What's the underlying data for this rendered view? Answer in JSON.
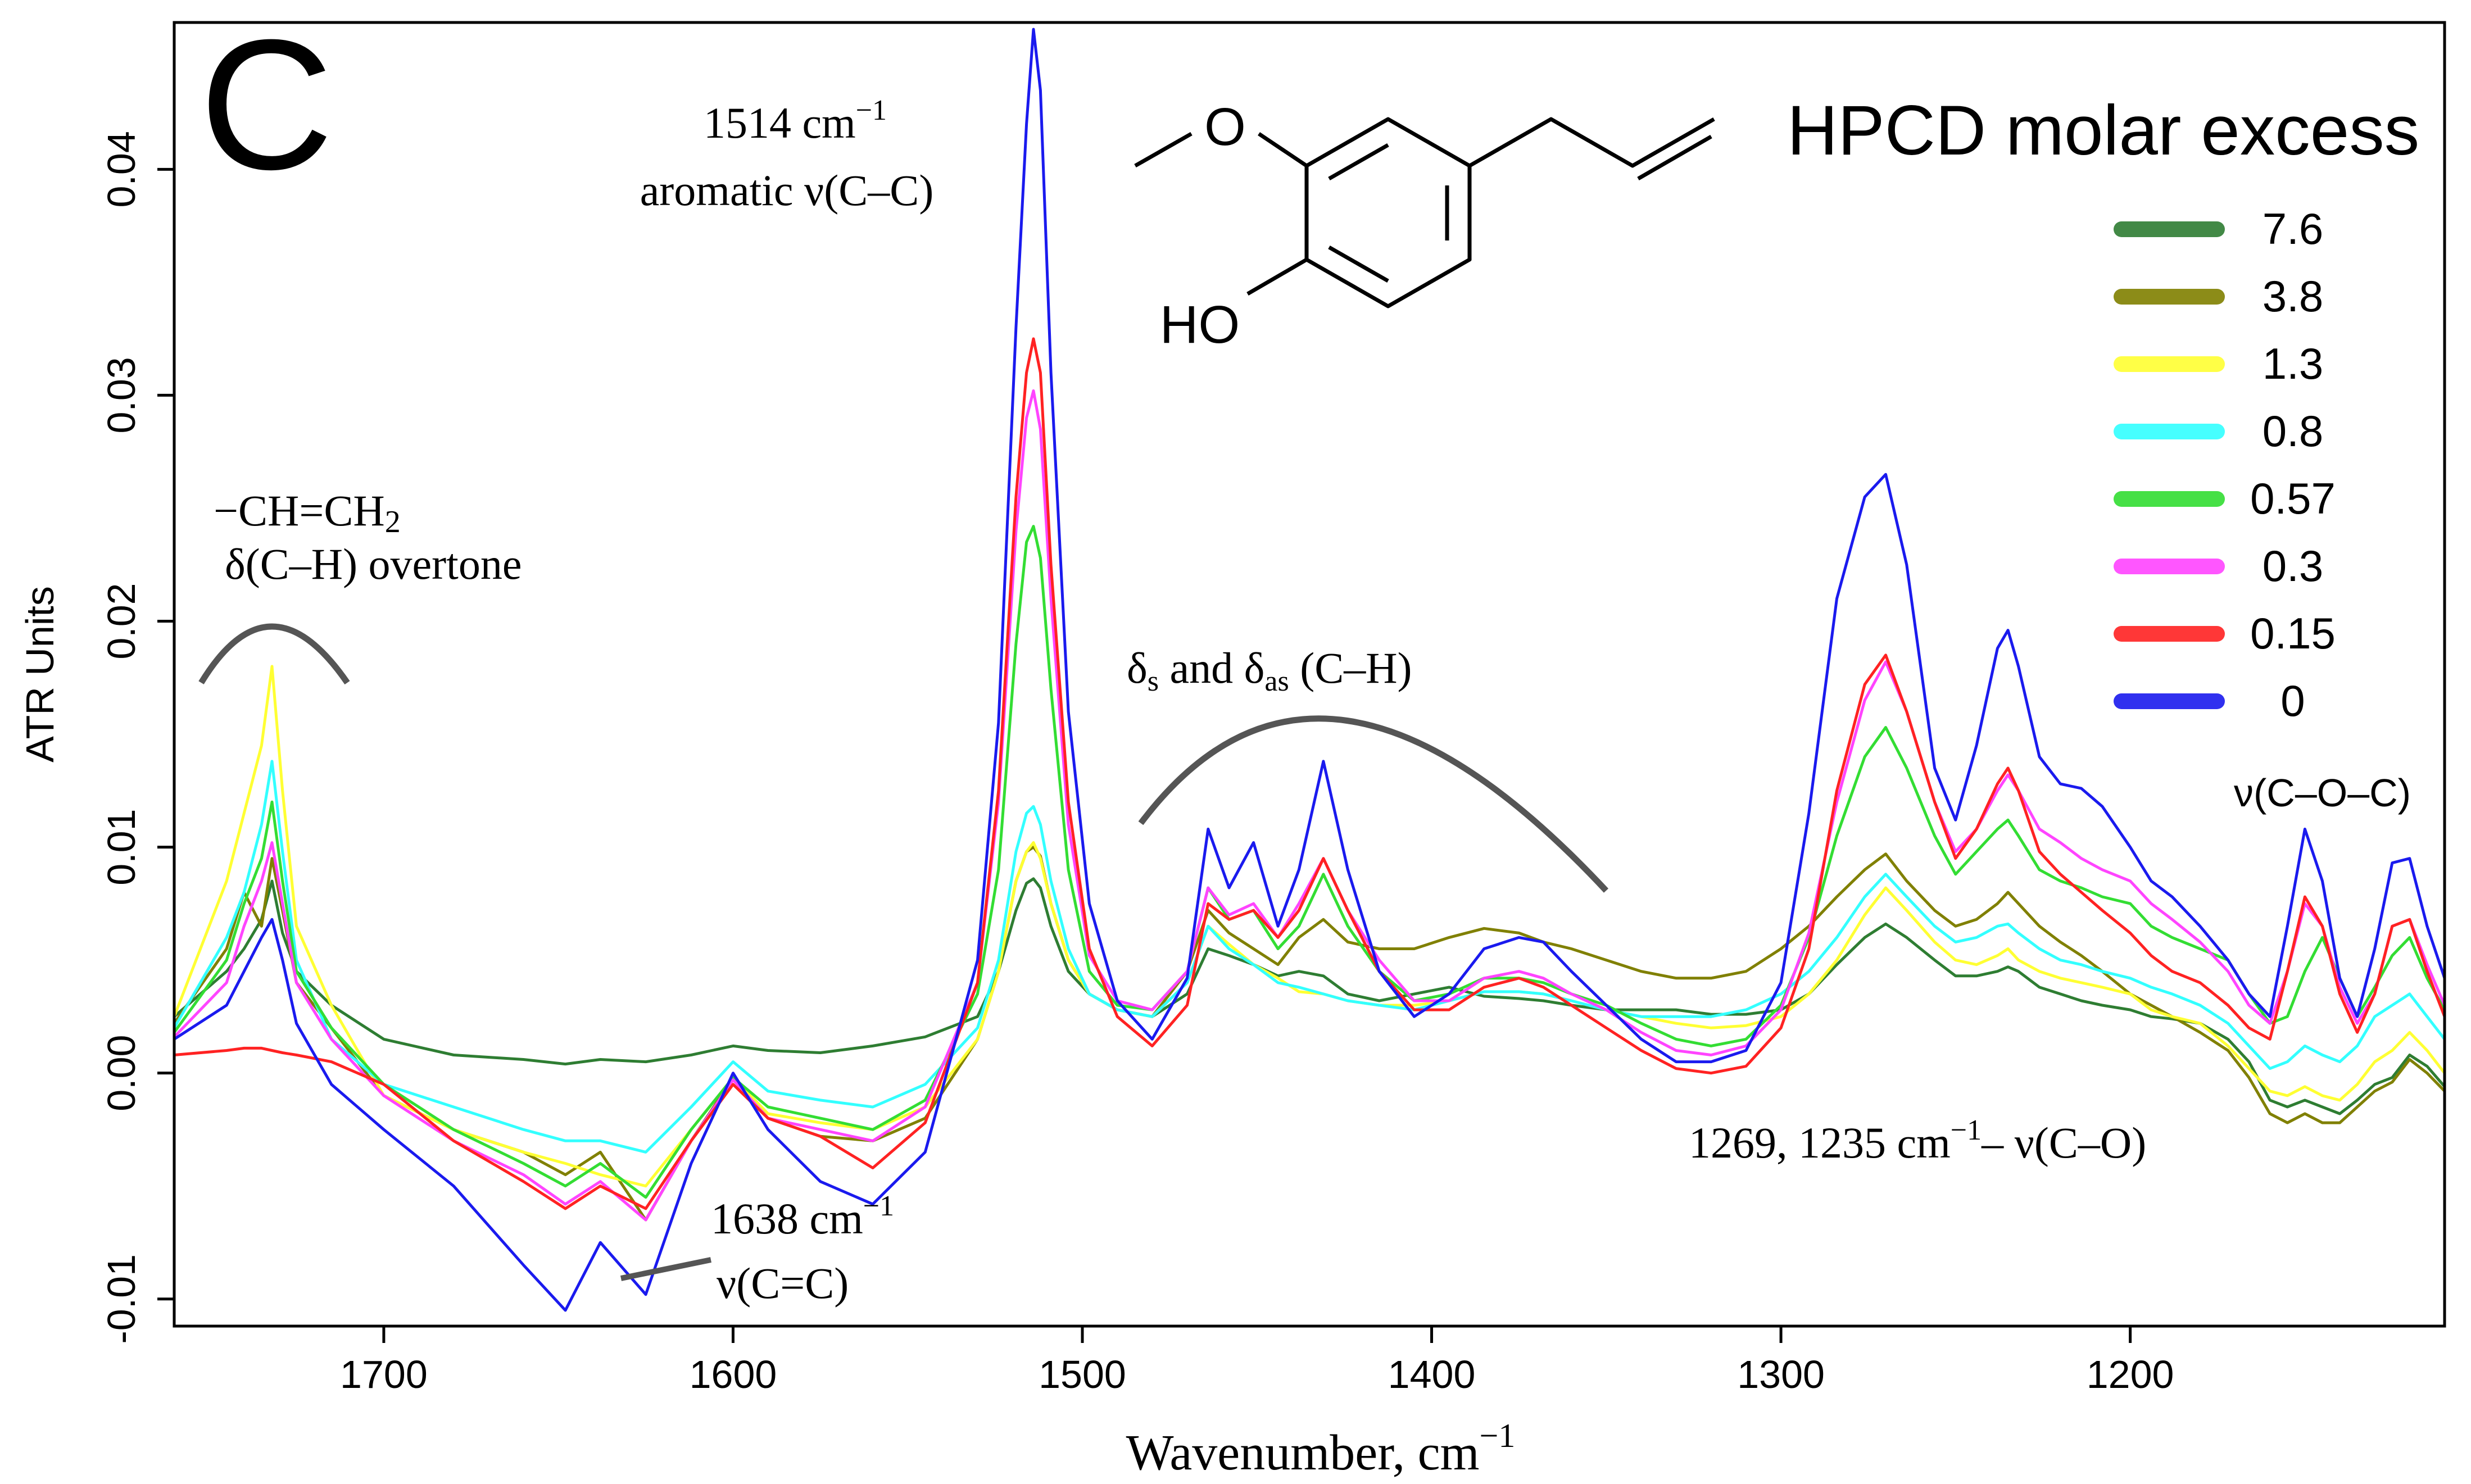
{
  "chart_data": {
    "type": "line",
    "panel_label": "C",
    "xlabel": "Wavenumber, cm",
    "xlabel_sup": "−1",
    "ylabel": "ATR Units",
    "xlim": [
      1760,
      1110
    ],
    "ylim": [
      -0.0112,
      0.0465
    ],
    "x_ticks": [
      1700,
      1600,
      1500,
      1400,
      1300,
      1200
    ],
    "x_tick_labels": [
      "1700",
      "1600",
      "1500",
      "1400",
      "1300",
      "1200"
    ],
    "y_ticks": [
      -0.01,
      0.0,
      0.01,
      0.02,
      0.03,
      0.04
    ],
    "y_tick_labels": [
      "-0.01",
      "0.00",
      "0.01",
      "0.02",
      "0.03",
      "0.04"
    ],
    "grid": false,
    "legend": {
      "title": "HPCD molar excess",
      "position": "top-right"
    },
    "molecule": {
      "labels": [
        "O",
        "HO"
      ]
    },
    "annotations": {
      "peak1514_line1": "1514 cm",
      "peak1514_sup": "−1",
      "peak1514_line2": "aromatic ν(C–C)",
      "vinyl_line1": "−CH=CH",
      "vinyl_sub": "2",
      "vinyl_line2": "δ(C–H) overtone",
      "ch_delta": "δ",
      "ch_s": "s",
      "ch_and": " and δ",
      "ch_as": "as",
      "ch_tail": " (C–H)",
      "cc_line1": "1638 cm",
      "cc_sup": "−1",
      "cc_line2": "ν(C=C)",
      "co_line1": "1269, 1235 cm",
      "co_sup": "−1",
      "co_tail": "–  ν(C–O)",
      "coc": "ν(C–O–C)"
    },
    "x": [
      1760,
      1745,
      1740,
      1735,
      1732,
      1729,
      1725,
      1715,
      1700,
      1680,
      1660,
      1648,
      1638,
      1625,
      1612,
      1600,
      1590,
      1575,
      1560,
      1545,
      1530,
      1524,
      1519,
      1516,
      1514,
      1512,
      1509,
      1504,
      1498,
      1490,
      1480,
      1470,
      1464,
      1458,
      1451,
      1444,
      1438,
      1431,
      1424,
      1415,
      1405,
      1395,
      1385,
      1375,
      1368,
      1360,
      1350,
      1340,
      1330,
      1320,
      1310,
      1300,
      1292,
      1284,
      1276,
      1270,
      1264,
      1256,
      1250,
      1244,
      1238,
      1235,
      1232,
      1226,
      1220,
      1214,
      1208,
      1200,
      1194,
      1188,
      1180,
      1172,
      1166,
      1160,
      1155,
      1150,
      1145,
      1140,
      1135,
      1130,
      1125,
      1120,
      1115,
      1110
    ],
    "series": [
      {
        "name": "7.6",
        "color": "#2e7d32",
        "values": [
          0.0025,
          0.0045,
          0.0055,
          0.0068,
          0.0085,
          0.0062,
          0.0045,
          0.003,
          0.0015,
          0.0008,
          0.0006,
          0.0004,
          0.0006,
          0.0005,
          0.0008,
          0.0012,
          0.001,
          0.0009,
          0.0012,
          0.0016,
          0.0025,
          0.0045,
          0.0072,
          0.0084,
          0.0086,
          0.0082,
          0.0065,
          0.0045,
          0.0035,
          0.0028,
          0.0025,
          0.0035,
          0.0055,
          0.0052,
          0.0048,
          0.0043,
          0.0045,
          0.0043,
          0.0035,
          0.0032,
          0.0035,
          0.0038,
          0.0034,
          0.0033,
          0.0032,
          0.003,
          0.0028,
          0.0028,
          0.0028,
          0.0026,
          0.0026,
          0.0028,
          0.0035,
          0.0048,
          0.006,
          0.0066,
          0.006,
          0.005,
          0.0043,
          0.0043,
          0.0045,
          0.0047,
          0.0045,
          0.0038,
          0.0035,
          0.0032,
          0.003,
          0.0028,
          0.0025,
          0.0024,
          0.0022,
          0.0015,
          0.0005,
          -0.0012,
          -0.0015,
          -0.0012,
          -0.0015,
          -0.0018,
          -0.0012,
          -0.0005,
          -0.0002,
          0.0008,
          0.0003,
          -0.0006
        ]
      },
      {
        "name": "3.8",
        "color": "#808000",
        "values": [
          0.0022,
          0.0055,
          0.008,
          0.0065,
          0.0095,
          0.0072,
          0.004,
          0.002,
          -0.001,
          -0.0025,
          -0.0035,
          -0.0045,
          -0.0035,
          -0.0065,
          -0.003,
          -0.0002,
          -0.002,
          -0.0028,
          -0.003,
          -0.002,
          0.0015,
          0.0045,
          0.0085,
          0.0098,
          0.01,
          0.0096,
          0.0075,
          0.005,
          0.0035,
          0.0028,
          0.0025,
          0.0045,
          0.0072,
          0.0062,
          0.0055,
          0.0048,
          0.006,
          0.0068,
          0.0058,
          0.0055,
          0.0055,
          0.006,
          0.0064,
          0.0062,
          0.0058,
          0.0055,
          0.005,
          0.0045,
          0.0042,
          0.0042,
          0.0045,
          0.0055,
          0.0065,
          0.0078,
          0.009,
          0.0097,
          0.0085,
          0.0072,
          0.0065,
          0.0068,
          0.0075,
          0.008,
          0.0075,
          0.0065,
          0.0058,
          0.0052,
          0.0045,
          0.0035,
          0.003,
          0.0025,
          0.0018,
          0.001,
          -0.0002,
          -0.0018,
          -0.0022,
          -0.0018,
          -0.0022,
          -0.0022,
          -0.0015,
          -0.0008,
          -0.0004,
          0.0006,
          0.0,
          -0.0008
        ]
      },
      {
        "name": "1.3",
        "color": "#ffff33",
        "values": [
          0.0025,
          0.0085,
          0.0115,
          0.0145,
          0.018,
          0.0125,
          0.0065,
          0.003,
          -0.001,
          -0.0025,
          -0.0035,
          -0.004,
          -0.0045,
          -0.005,
          -0.0025,
          -0.0002,
          -0.0018,
          -0.0022,
          -0.0025,
          -0.0015,
          0.0015,
          0.0045,
          0.0085,
          0.0098,
          0.0102,
          0.0095,
          0.0075,
          0.005,
          0.0035,
          0.0028,
          0.0025,
          0.004,
          0.0065,
          0.0057,
          0.0048,
          0.0042,
          0.0036,
          0.0035,
          0.0032,
          0.003,
          0.003,
          0.0032,
          0.0036,
          0.0036,
          0.0035,
          0.0032,
          0.0028,
          0.0025,
          0.0022,
          0.002,
          0.0021,
          0.0025,
          0.0035,
          0.005,
          0.007,
          0.0082,
          0.0072,
          0.0058,
          0.005,
          0.0048,
          0.0052,
          0.0055,
          0.005,
          0.0045,
          0.0042,
          0.004,
          0.0038,
          0.0035,
          0.0028,
          0.0025,
          0.0022,
          0.0012,
          0.0002,
          -0.0008,
          -0.001,
          -0.0006,
          -0.001,
          -0.0012,
          -0.0005,
          0.0005,
          0.001,
          0.0018,
          0.001,
          0.0
        ]
      },
      {
        "name": "0.8",
        "color": "#33ffff",
        "values": [
          0.002,
          0.006,
          0.008,
          0.011,
          0.0138,
          0.0098,
          0.005,
          0.0015,
          -0.0005,
          -0.0015,
          -0.0025,
          -0.003,
          -0.003,
          -0.0035,
          -0.0015,
          0.0005,
          -0.0008,
          -0.0012,
          -0.0015,
          -0.0005,
          0.002,
          0.005,
          0.0098,
          0.0115,
          0.0118,
          0.011,
          0.0085,
          0.0055,
          0.0035,
          0.0028,
          0.0025,
          0.004,
          0.0065,
          0.0055,
          0.0048,
          0.004,
          0.0038,
          0.0035,
          0.0032,
          0.003,
          0.0028,
          0.0032,
          0.0036,
          0.0036,
          0.0035,
          0.0032,
          0.0028,
          0.0025,
          0.0025,
          0.0025,
          0.0028,
          0.0035,
          0.0045,
          0.006,
          0.0078,
          0.0088,
          0.0078,
          0.0065,
          0.0058,
          0.006,
          0.0065,
          0.0066,
          0.0062,
          0.0055,
          0.005,
          0.0048,
          0.0045,
          0.0042,
          0.0038,
          0.0035,
          0.003,
          0.0022,
          0.0012,
          0.0002,
          0.0005,
          0.0012,
          0.0008,
          0.0005,
          0.0012,
          0.0025,
          0.003,
          0.0035,
          0.0025,
          0.0015
        ]
      },
      {
        "name": "0.57",
        "color": "#33dd33",
        "values": [
          0.0018,
          0.005,
          0.0075,
          0.0095,
          0.012,
          0.0085,
          0.0045,
          0.002,
          -0.0005,
          -0.0025,
          -0.004,
          -0.005,
          -0.004,
          -0.0055,
          -0.0025,
          -0.0002,
          -0.0015,
          -0.002,
          -0.0025,
          -0.0012,
          0.0035,
          0.009,
          0.019,
          0.0235,
          0.0242,
          0.0228,
          0.017,
          0.009,
          0.0045,
          0.003,
          0.0028,
          0.0045,
          0.0082,
          0.0068,
          0.0072,
          0.0055,
          0.0065,
          0.0088,
          0.0065,
          0.0045,
          0.0032,
          0.0035,
          0.0042,
          0.0042,
          0.004,
          0.0035,
          0.003,
          0.0022,
          0.0015,
          0.0012,
          0.0015,
          0.003,
          0.006,
          0.0105,
          0.014,
          0.0153,
          0.0135,
          0.0105,
          0.0088,
          0.0098,
          0.0108,
          0.0112,
          0.0105,
          0.009,
          0.0085,
          0.0082,
          0.0078,
          0.0075,
          0.0065,
          0.006,
          0.0055,
          0.005,
          0.0035,
          0.0022,
          0.0025,
          0.0045,
          0.006,
          0.0042,
          0.0025,
          0.0038,
          0.0052,
          0.006,
          0.0042,
          0.0028
        ]
      },
      {
        "name": "0.3",
        "color": "#ff44ff",
        "values": [
          0.0016,
          0.004,
          0.0065,
          0.0085,
          0.0102,
          0.0075,
          0.004,
          0.0015,
          -0.001,
          -0.003,
          -0.0045,
          -0.0058,
          -0.0048,
          -0.0065,
          -0.003,
          -0.0003,
          -0.002,
          -0.0025,
          -0.003,
          -0.0015,
          0.004,
          0.012,
          0.024,
          0.029,
          0.0302,
          0.0285,
          0.021,
          0.011,
          0.0052,
          0.0032,
          0.0028,
          0.0045,
          0.0082,
          0.007,
          0.0075,
          0.006,
          0.0075,
          0.0095,
          0.0072,
          0.005,
          0.0032,
          0.0032,
          0.0042,
          0.0045,
          0.0042,
          0.0035,
          0.0028,
          0.0018,
          0.001,
          0.0008,
          0.0012,
          0.0028,
          0.0062,
          0.012,
          0.0165,
          0.0182,
          0.016,
          0.012,
          0.0098,
          0.0108,
          0.0125,
          0.0132,
          0.0125,
          0.0108,
          0.0102,
          0.0095,
          0.009,
          0.0085,
          0.0075,
          0.0068,
          0.0058,
          0.0045,
          0.003,
          0.0022,
          0.0045,
          0.0075,
          0.0065,
          0.0038,
          0.0022,
          0.0035,
          0.0065,
          0.0068,
          0.0048,
          0.003
        ]
      },
      {
        "name": "0.15",
        "color": "#ff2222",
        "values": [
          0.0008,
          0.001,
          0.0011,
          0.0011,
          0.001,
          0.0009,
          0.0008,
          0.0005,
          -0.0005,
          -0.003,
          -0.0048,
          -0.006,
          -0.005,
          -0.006,
          -0.003,
          -0.0005,
          -0.002,
          -0.0028,
          -0.0042,
          -0.0022,
          0.004,
          0.0125,
          0.0255,
          0.031,
          0.0325,
          0.031,
          0.0225,
          0.012,
          0.0055,
          0.0025,
          0.0012,
          0.003,
          0.0075,
          0.0068,
          0.0072,
          0.006,
          0.0072,
          0.0095,
          0.0072,
          0.0045,
          0.0028,
          0.0028,
          0.0038,
          0.0042,
          0.0038,
          0.003,
          0.002,
          0.001,
          0.0002,
          0.0,
          0.0003,
          0.002,
          0.0055,
          0.0125,
          0.0172,
          0.0185,
          0.016,
          0.012,
          0.0095,
          0.0108,
          0.0128,
          0.0135,
          0.0125,
          0.0098,
          0.0088,
          0.008,
          0.0072,
          0.0062,
          0.0052,
          0.0045,
          0.004,
          0.003,
          0.002,
          0.0015,
          0.0045,
          0.0078,
          0.0065,
          0.0035,
          0.0018,
          0.0035,
          0.0065,
          0.0068,
          0.0045,
          0.0025
        ]
      },
      {
        "name": "0",
        "color": "#1a1aee",
        "values": [
          0.0015,
          0.003,
          0.0045,
          0.006,
          0.0068,
          0.005,
          0.0022,
          -0.0005,
          -0.0025,
          -0.005,
          -0.0085,
          -0.0105,
          -0.0075,
          -0.0098,
          -0.004,
          0.0,
          -0.0025,
          -0.0048,
          -0.0058,
          -0.0035,
          0.005,
          0.0155,
          0.033,
          0.042,
          0.0462,
          0.0435,
          0.031,
          0.016,
          0.0075,
          0.0032,
          0.0015,
          0.0042,
          0.0108,
          0.0082,
          0.0102,
          0.0065,
          0.009,
          0.0138,
          0.009,
          0.0045,
          0.0025,
          0.0035,
          0.0055,
          0.006,
          0.0058,
          0.0045,
          0.003,
          0.0015,
          0.0005,
          0.0005,
          0.001,
          0.004,
          0.0115,
          0.021,
          0.0255,
          0.0265,
          0.0225,
          0.0135,
          0.0112,
          0.0145,
          0.0188,
          0.0196,
          0.018,
          0.014,
          0.0128,
          0.0126,
          0.0118,
          0.01,
          0.0085,
          0.0078,
          0.0065,
          0.005,
          0.0035,
          0.0025,
          0.0065,
          0.0108,
          0.0085,
          0.0042,
          0.0025,
          0.0055,
          0.0093,
          0.0095,
          0.0065,
          0.0042
        ]
      }
    ]
  }
}
